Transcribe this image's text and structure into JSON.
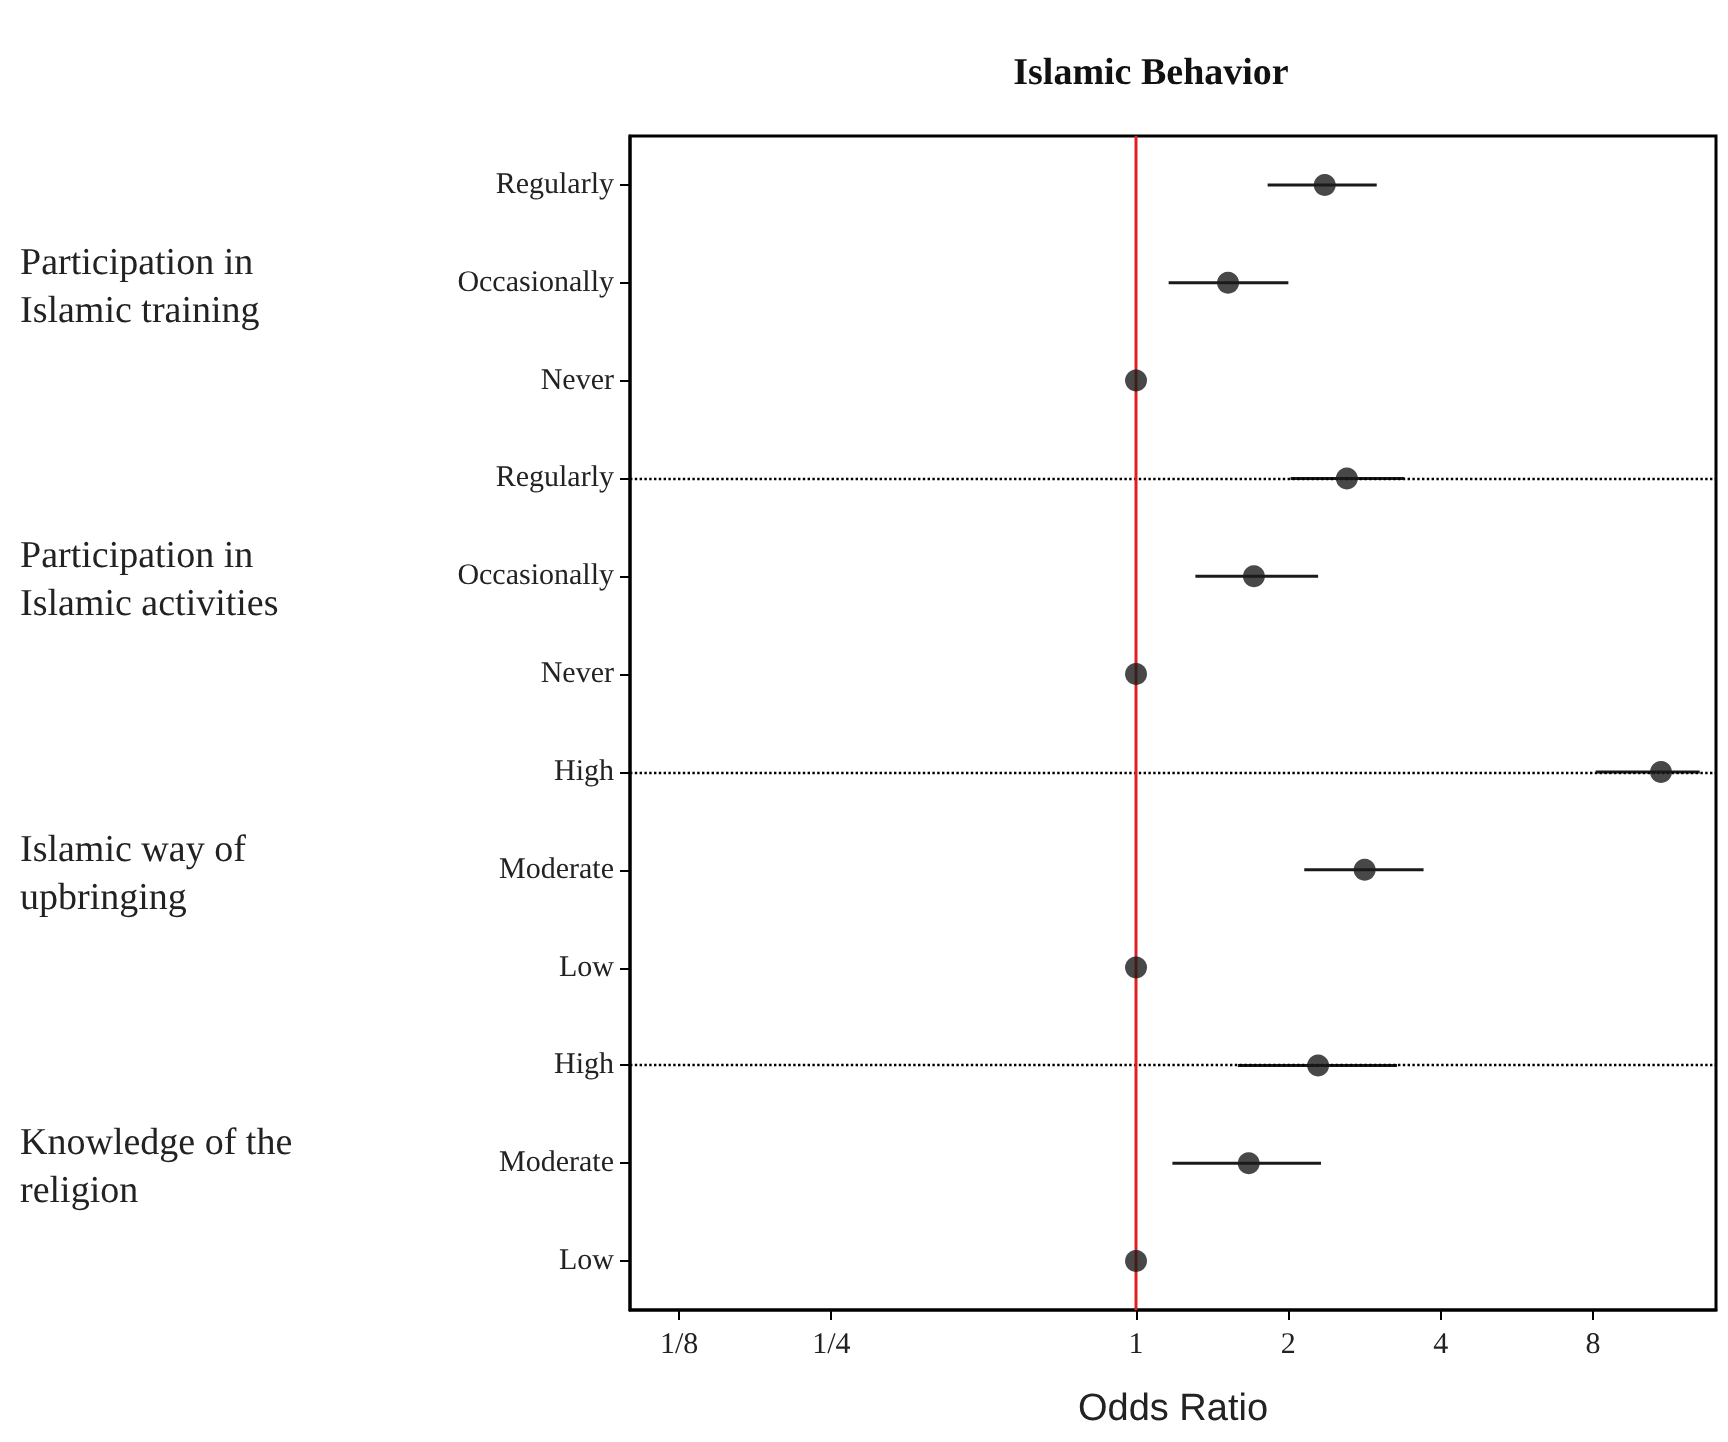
{
  "chart_data": {
    "type": "scatter",
    "title": "Islamic Behavior",
    "xlabel": "Odds Ratio",
    "categories": [
      "Regularly",
      "Occasionally",
      "Never",
      "Regularly",
      "Occasionally",
      "Never",
      "High",
      "Moderate",
      "Low",
      "High",
      "Moderate",
      "Low"
    ],
    "values": [
      2.36,
      1.52,
      1,
      2.61,
      1.71,
      1,
      10.9,
      2.83,
      1,
      2.29,
      1.67,
      1
    ],
    "errors": [
      [
        1.82,
        2.99
      ],
      [
        1.16,
        2.0
      ],
      null,
      [
        2.02,
        3.39
      ],
      [
        1.31,
        2.29
      ],
      null,
      [
        8.1,
        13
      ],
      [
        2.15,
        3.7
      ],
      null,
      [
        1.59,
        3.28
      ],
      [
        1.18,
        2.32
      ],
      null
    ],
    "color": "#1a1a1a",
    "marker": "circle",
    "log": "x",
    "xlim": [
      0.1,
      14
    ],
    "xticks": [
      {
        "value": 0.125,
        "label": "1/8"
      },
      {
        "value": 0.25,
        "label": "1/4"
      },
      {
        "value": 1,
        "label": "1"
      },
      {
        "value": 2,
        "label": "2"
      },
      {
        "value": 4,
        "label": "4"
      },
      {
        "value": 8,
        "label": "8"
      }
    ],
    "orientation": "horizontal",
    "grid": false,
    "ref_lines": [
      {
        "axis": "x",
        "value": 1,
        "color": "#e02020",
        "line_style": "solid"
      }
    ],
    "annotations": [
      "Participation in Islamic training",
      "Participation in Islamic activities",
      "Islamic way of upbringing",
      "Knowledge of the religion"
    ]
  }
}
